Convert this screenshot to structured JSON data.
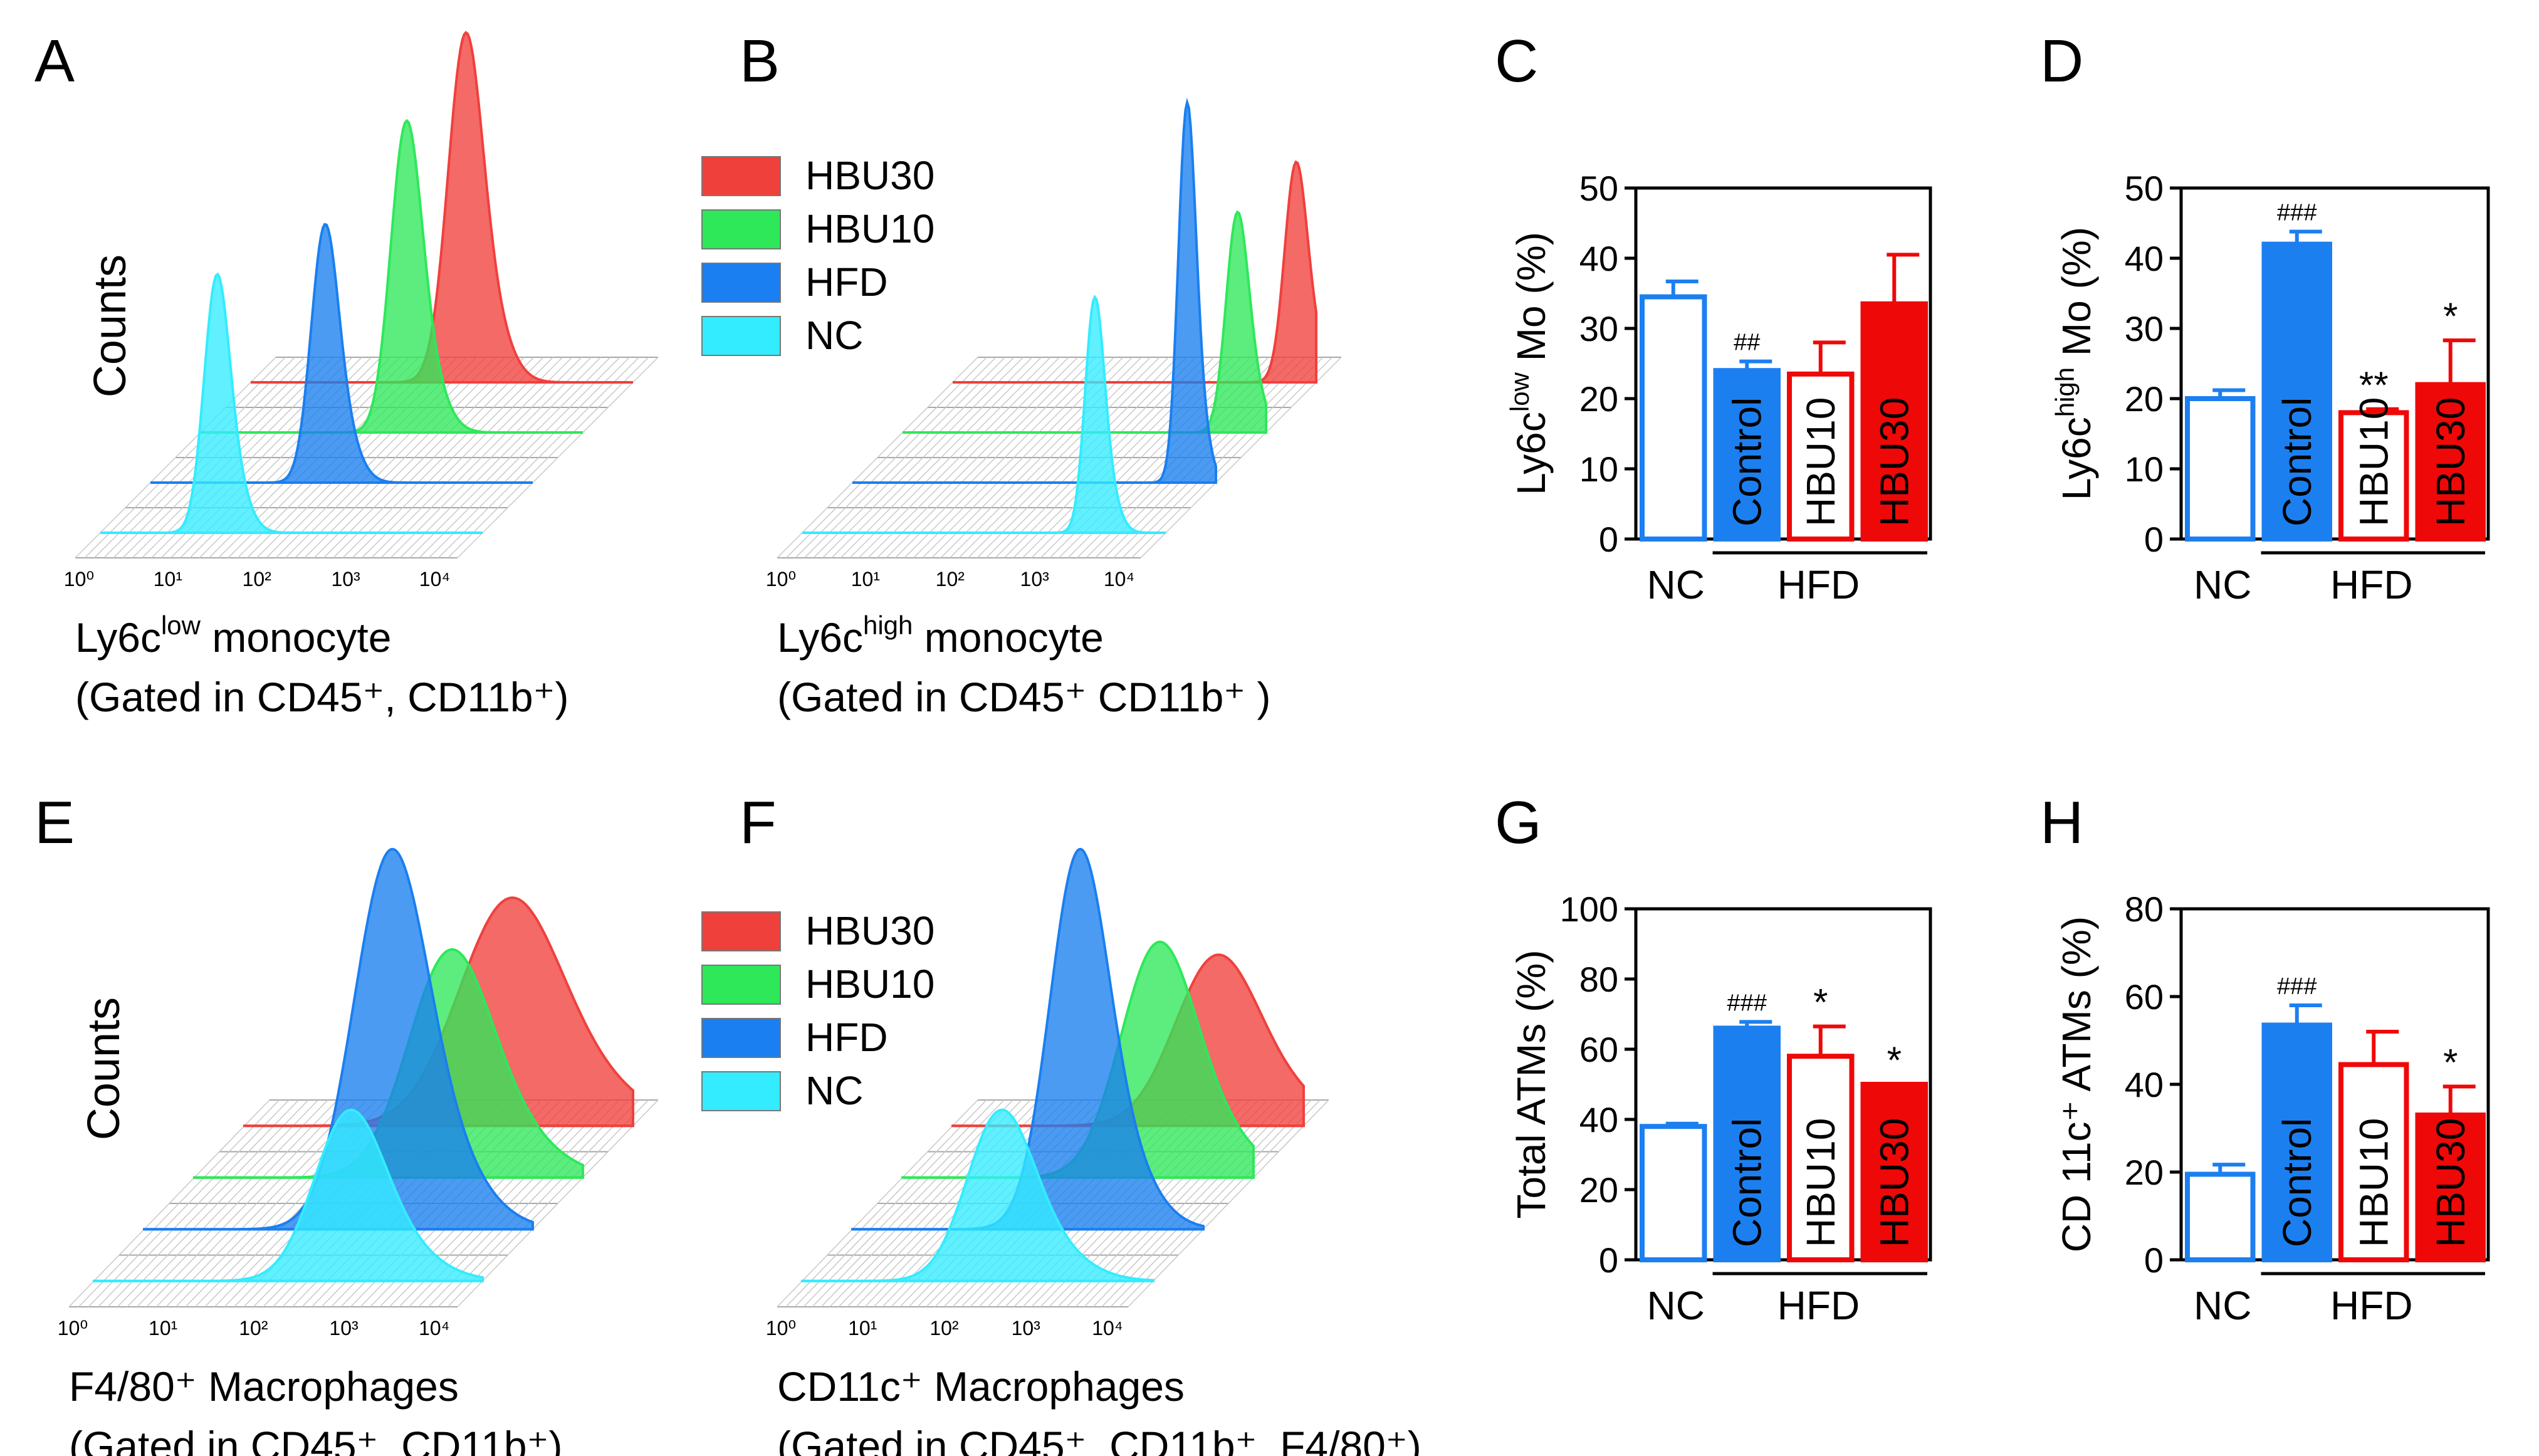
{
  "colors": {
    "NC": "#33ecff",
    "HFD": "#1a7ff0",
    "HBU10": "#2ee85a",
    "HBU30": "#f0403c",
    "blue": "#1c7ff0",
    "red": "#ef0808",
    "grid": "#a8a8a8"
  },
  "panels": {
    "A": "A",
    "B": "B",
    "C": "C",
    "D": "D",
    "E": "E",
    "F": "F",
    "G": "G",
    "H": "H"
  },
  "legend_top": [
    "HBU30",
    "HBU10",
    "HFD",
    "NC"
  ],
  "legend_bottom": [
    "HBU30",
    "HBU10",
    "HFD",
    "NC"
  ],
  "histograms": [
    {
      "id": "A",
      "name": "Ly6c-low-monocyte-histogram",
      "ylabel": "Counts",
      "caption_main": "Ly6c",
      "caption_sup": "low",
      "caption_rest": " monocyte",
      "caption_line2": "(Gated in CD45⁺, CD11b⁺)",
      "ticks": [
        "10⁰",
        "10¹",
        "10²",
        "10³",
        "10⁴"
      ],
      "series": [
        {
          "name": "HBU30",
          "peak": 2.4,
          "width": 0.19,
          "height": 0.92
        },
        {
          "name": "HBU10",
          "peak": 2.3,
          "width": 0.17,
          "height": 0.82
        },
        {
          "name": "HFD",
          "peak": 1.95,
          "width": 0.15,
          "height": 0.68
        },
        {
          "name": "NC",
          "peak": 1.3,
          "width": 0.14,
          "height": 0.68
        }
      ]
    },
    {
      "id": "B",
      "name": "Ly6c-high-monocyte-histogram",
      "ylabel": "",
      "caption_main": "Ly6c",
      "caption_sup": "high",
      "caption_rest": " monocyte",
      "caption_line2": "(Gated in CD45⁺ CD11b⁺ )",
      "ticks": [
        "10⁰",
        "10¹",
        "10²",
        "10³",
        "10⁴"
      ],
      "series": [
        {
          "name": "HBU30",
          "peak": 4.05,
          "width": 0.13,
          "height": 0.58
        },
        {
          "name": "HBU10",
          "peak": 3.95,
          "width": 0.13,
          "height": 0.58
        },
        {
          "name": "HFD",
          "peak": 3.95,
          "width": 0.1,
          "height": 1.0
        },
        {
          "name": "NC",
          "peak": 3.45,
          "width": 0.11,
          "height": 0.62
        }
      ]
    },
    {
      "id": "E",
      "name": "F4-80-macrophage-histogram",
      "ylabel": "Counts",
      "caption_main": "F4/80⁺ Macrophages",
      "caption_sup": "",
      "caption_rest": "",
      "caption_line2": "(Gated in CD45⁺, CD11b⁺)",
      "ticks": [
        "10⁰",
        "10¹",
        "10²",
        "10³",
        "10⁴"
      ],
      "series": [
        {
          "name": "HBU30",
          "peak": 2.9,
          "width": 0.55,
          "height": 0.6
        },
        {
          "name": "HBU10",
          "peak": 2.8,
          "width": 0.45,
          "height": 0.6
        },
        {
          "name": "HFD",
          "peak": 2.7,
          "width": 0.4,
          "height": 1.0
        },
        {
          "name": "NC",
          "peak": 2.8,
          "width": 0.38,
          "height": 0.45
        }
      ]
    },
    {
      "id": "F",
      "name": "CD11c-macrophage-histogram",
      "ylabel": "",
      "caption_main": "CD11c⁺ Macrophages",
      "caption_sup": "",
      "caption_rest": "",
      "caption_line2": "(Gated in CD45⁺, CD11b⁺, F4/80⁺)",
      "ticks": [
        "10⁰",
        "10¹",
        "10²",
        "10³",
        "10⁴"
      ],
      "series": [
        {
          "name": "HBU30",
          "peak": 3.2,
          "width": 0.5,
          "height": 0.45
        },
        {
          "name": "HBU10",
          "peak": 3.1,
          "width": 0.45,
          "height": 0.62
        },
        {
          "name": "HFD",
          "peak": 2.75,
          "width": 0.35,
          "height": 1.0
        },
        {
          "name": "NC",
          "peak": 2.4,
          "width": 0.4,
          "height": 0.45
        }
      ]
    }
  ],
  "chart_data": [
    {
      "id": "C",
      "type": "bar",
      "ylabel_pre": "Ly6c",
      "ylabel_sup": "low",
      "ylabel_post": " Mo (%)",
      "ylim": [
        0,
        50
      ],
      "yticks": [
        0,
        10,
        20,
        30,
        40,
        50
      ],
      "categories": [
        "NC",
        "Control",
        "HBU10",
        "HBU30"
      ],
      "values": [
        34.5,
        24,
        23.5,
        33.5
      ],
      "errors": [
        2.2,
        1.3,
        4.5,
        7.0
      ],
      "annotations": [
        "",
        "##",
        "",
        ""
      ],
      "group_labels": [
        "NC",
        "HFD"
      ]
    },
    {
      "id": "D",
      "type": "bar",
      "ylabel_pre": "Ly6c",
      "ylabel_sup": "high",
      "ylabel_post": " Mo (%)",
      "ylim": [
        0,
        50
      ],
      "yticks": [
        0,
        10,
        20,
        30,
        40,
        50
      ],
      "categories": [
        "NC",
        "Control",
        "HBU10",
        "HBU30"
      ],
      "values": [
        20,
        42,
        18,
        22
      ],
      "errors": [
        1.2,
        1.8,
        0.5,
        6.3
      ],
      "annotations": [
        "",
        "###",
        "**",
        "*"
      ],
      "group_labels": [
        "NC",
        "HFD"
      ]
    },
    {
      "id": "G",
      "type": "bar",
      "ylabel_pre": "Total ATMs (%)",
      "ylabel_sup": "",
      "ylabel_post": "",
      "ylim": [
        0,
        100
      ],
      "yticks": [
        0,
        20,
        40,
        60,
        80,
        100
      ],
      "categories": [
        "NC",
        "Control",
        "HBU10",
        "HBU30"
      ],
      "values": [
        38,
        66,
        58,
        50
      ],
      "errors": [
        0.8,
        1.8,
        8.5,
        0
      ],
      "annotations": [
        "",
        "###",
        "*",
        "*"
      ],
      "group_labels": [
        "NC",
        "HFD"
      ]
    },
    {
      "id": "H",
      "type": "bar",
      "ylabel_pre": "CD 11c⁺ ATMs (%)",
      "ylabel_sup": "",
      "ylabel_post": "",
      "ylim": [
        0,
        80
      ],
      "yticks": [
        0,
        20,
        40,
        60,
        80
      ],
      "categories": [
        "NC",
        "Control",
        "HBU10",
        "HBU30"
      ],
      "values": [
        19.5,
        53.5,
        44.5,
        33
      ],
      "errors": [
        2.2,
        4.5,
        7.5,
        6.5
      ],
      "annotations": [
        "",
        "###",
        "",
        "*"
      ],
      "group_labels": [
        "NC",
        "HFD"
      ]
    }
  ]
}
